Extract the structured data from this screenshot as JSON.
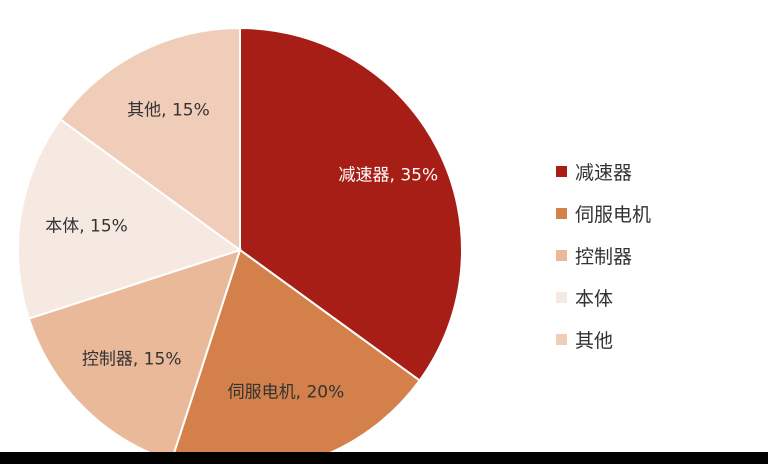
{
  "chart_data": {
    "type": "pie",
    "slices": [
      {
        "category": "减速器",
        "value": 35,
        "label": "减速器, 35%",
        "color": "#A71E16",
        "label_color": "#ffffff"
      },
      {
        "category": "伺服电机",
        "value": 20,
        "label": "伺服电机, 20%",
        "color": "#D4804A",
        "label_color": "#333333"
      },
      {
        "category": "控制器",
        "value": 15,
        "label": "控制器, 15%",
        "color": "#E9B99A",
        "label_color": "#333333"
      },
      {
        "category": "本体",
        "value": 15,
        "label": "本体, 15%",
        "color": "#F6E9E2",
        "label_color": "#333333"
      },
      {
        "category": "其他",
        "value": 15,
        "label": "其他, 15%",
        "color": "#F0CDB9",
        "label_color": "#333333"
      }
    ],
    "legend": {
      "placement": "right",
      "entries": [
        "减速器",
        "伺服电机",
        "控制器",
        "本体",
        "其他"
      ]
    }
  }
}
